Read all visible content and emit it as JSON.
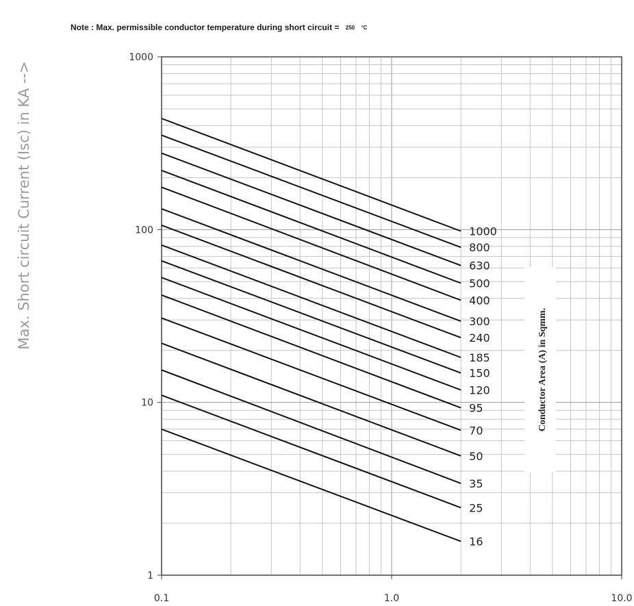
{
  "chart_data": {
    "type": "line",
    "note": "Note : Max. permissible conductor temperature during short circuit =",
    "note_value": "250",
    "note_unit": "°C",
    "ylabel": "Max. Short circuit Current (Isc) in KA -->",
    "xlabel": "",
    "legend_title": "Conductor Area (A) in Sqmm.",
    "x_scale": "log",
    "y_scale": "log",
    "xlim": [
      0.1,
      10
    ],
    "ylim": [
      1,
      1000
    ],
    "x_ticks": [
      "0.1",
      "1.0",
      "10.0"
    ],
    "y_ticks": [
      "1",
      "10",
      "100",
      "1000"
    ],
    "grid": true,
    "series": [
      {
        "name": "1000",
        "x": [
          0.1,
          2.0
        ],
        "y": [
          440,
          98
        ]
      },
      {
        "name": "800",
        "x": [
          0.1,
          2.0
        ],
        "y": [
          352,
          79
        ]
      },
      {
        "name": "630",
        "x": [
          0.1,
          2.0
        ],
        "y": [
          277,
          62
        ]
      },
      {
        "name": "500",
        "x": [
          0.1,
          2.0
        ],
        "y": [
          220,
          49
        ]
      },
      {
        "name": "400",
        "x": [
          0.1,
          2.0
        ],
        "y": [
          176,
          39
        ]
      },
      {
        "name": "300",
        "x": [
          0.1,
          2.0
        ],
        "y": [
          132,
          29.5
        ]
      },
      {
        "name": "240",
        "x": [
          0.1,
          2.0
        ],
        "y": [
          106,
          23.7
        ]
      },
      {
        "name": "185",
        "x": [
          0.1,
          2.0
        ],
        "y": [
          81.4,
          18.2
        ]
      },
      {
        "name": "150",
        "x": [
          0.1,
          2.0
        ],
        "y": [
          66,
          14.8
        ]
      },
      {
        "name": "120",
        "x": [
          0.1,
          2.0
        ],
        "y": [
          52.8,
          11.8
        ]
      },
      {
        "name": "95",
        "x": [
          0.1,
          2.0
        ],
        "y": [
          41.8,
          9.3
        ]
      },
      {
        "name": "70",
        "x": [
          0.1,
          2.0
        ],
        "y": [
          30.8,
          6.9
        ]
      },
      {
        "name": "50",
        "x": [
          0.1,
          2.0
        ],
        "y": [
          22,
          4.9
        ]
      },
      {
        "name": "35",
        "x": [
          0.1,
          2.0
        ],
        "y": [
          15.4,
          3.4
        ]
      },
      {
        "name": "25",
        "x": [
          0.1,
          2.0
        ],
        "y": [
          11,
          2.46
        ]
      },
      {
        "name": "16",
        "x": [
          0.1,
          2.0
        ],
        "y": [
          7,
          1.57
        ]
      }
    ]
  }
}
